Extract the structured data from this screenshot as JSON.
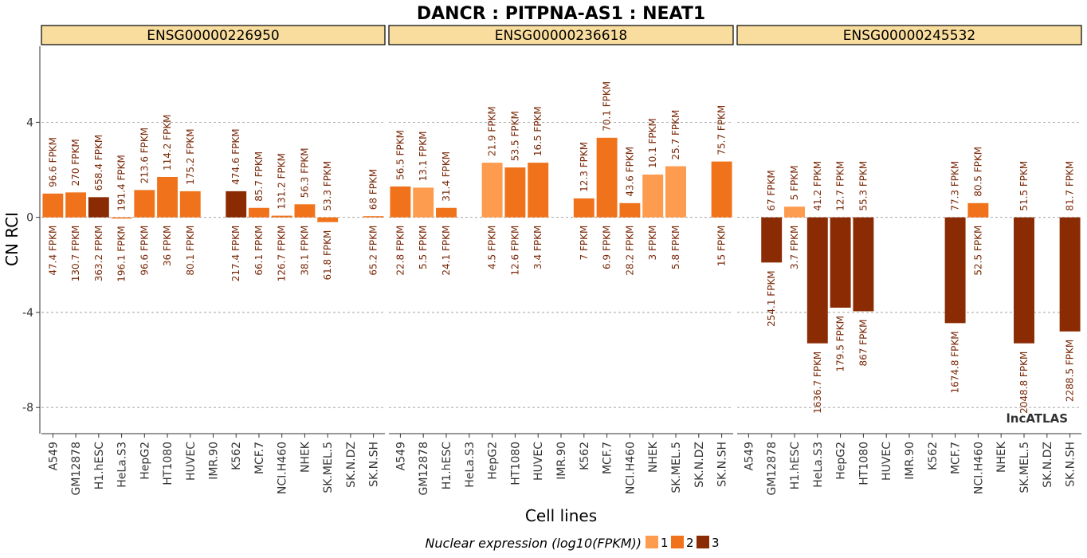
{
  "colors": {
    "level_1": "#fdae61",
    "level_1_fill": "#fd9b4e",
    "level_2": "#f0731c",
    "level_3_dark": "#c54102",
    "level_3": "#8a2b03",
    "strip_fill": "#f9dd9e",
    "grid": "#999999"
  },
  "chart_data": {
    "type": "bar",
    "title": "DANCR : PITPNA-AS1 : NEAT1",
    "xlabel": "Cell lines",
    "ylabel": "CN RCI",
    "ylim": [
      -9.1,
      7.2
    ],
    "yticks": [
      "4",
      "0",
      "-4",
      "-8"
    ],
    "ytick_values": [
      4,
      0,
      -4,
      -8
    ],
    "grid": "horizontal dashed at y ticks",
    "categories": [
      "A549",
      "GM12878",
      "H1.hESC",
      "HeLa.S3",
      "HepG2",
      "HT1080",
      "HUVEC",
      "IMR.90",
      "K562",
      "MCF.7",
      "NCI.H460",
      "NHEK",
      "SK.MEL.5",
      "SK.N.DZ",
      "SK.N.SH"
    ],
    "legend": {
      "title": "Nuclear expression (log10(FPKM))",
      "entries": [
        "1",
        "2",
        "3"
      ],
      "placement": "bottom"
    },
    "watermark": "lncATLAS",
    "panels": [
      {
        "name": "ENSG00000226950",
        "values": [
          1.0,
          1.05,
          0.85,
          -0.02,
          1.15,
          1.7,
          1.1,
          null,
          1.1,
          0.4,
          0.07,
          0.55,
          -0.2,
          null,
          0.05
        ],
        "levels": [
          2,
          2,
          3,
          2,
          2,
          2,
          2,
          null,
          3,
          2,
          2,
          2,
          2,
          null,
          2
        ],
        "nuclear_fpkm": [
          "96.6 FPKM",
          "270 FPKM",
          "658.4 FPKM",
          "191.4 FPKM",
          "213.6 FPKM",
          "114.2 FPKM",
          "175.2 FPKM",
          "",
          "474.6 FPKM",
          "85.7 FPKM",
          "131.2 FPKM",
          "56.3 FPKM",
          "53.3 FPKM",
          "",
          "68 FPKM"
        ],
        "cytoplasmic_fpkm": [
          "47.4 FPKM",
          "130.7 FPKM",
          "363.2 FPKM",
          "196.1 FPKM",
          "96.6 FPKM",
          "36 FPKM",
          "80.1 FPKM",
          "",
          "217.4 FPKM",
          "66.1 FPKM",
          "126.7 FPKM",
          "38.1 FPKM",
          "61.8 FPKM",
          "",
          "65.2 FPKM"
        ]
      },
      {
        "name": "ENSG00000236618",
        "values": [
          1.3,
          1.25,
          0.4,
          null,
          2.3,
          2.1,
          2.3,
          null,
          0.8,
          3.35,
          0.6,
          1.8,
          2.15,
          null,
          2.35
        ],
        "levels": [
          2,
          1,
          2,
          null,
          1,
          2,
          2,
          null,
          2,
          2,
          2,
          1,
          1,
          null,
          2
        ],
        "nuclear_fpkm": [
          "56.5 FPKM",
          "13.1 FPKM",
          "31.4 FPKM",
          "",
          "21.9 FPKM",
          "53.5 FPKM",
          "16.5 FPKM",
          "",
          "12.3 FPKM",
          "70.1 FPKM",
          "43.6 FPKM",
          "10.1 FPKM",
          "25.7 FPKM",
          "",
          "75.7 FPKM"
        ],
        "cytoplasmic_fpkm": [
          "22.8 FPKM",
          "5.5 FPKM",
          "24.1 FPKM",
          "",
          "4.5 FPKM",
          "12.6 FPKM",
          "3.4 FPKM",
          "",
          "7 FPKM",
          "6.9 FPKM",
          "28.2 FPKM",
          "3 FPKM",
          "5.8 FPKM",
          "",
          "15 FPKM"
        ]
      },
      {
        "name": "ENSG00000245532",
        "values": [
          null,
          -1.9,
          0.45,
          -5.3,
          -3.8,
          -3.95,
          null,
          null,
          null,
          -4.45,
          0.6,
          null,
          -5.3,
          null,
          -4.8
        ],
        "levels": [
          null,
          3,
          1,
          3,
          3,
          3,
          null,
          null,
          null,
          3,
          2,
          null,
          3,
          null,
          3
        ],
        "nuclear_fpkm": [
          "",
          "67 FPKM",
          "5 FPKM",
          "41.2 FPKM",
          "12.7 FPKM",
          "55.3 FPKM",
          "",
          "",
          "",
          "77.3 FPKM",
          "80.5 FPKM",
          "",
          "51.5 FPKM",
          "",
          "81.7 FPKM"
        ],
        "cytoplasmic_fpkm": [
          "",
          "254.1 FPKM",
          "3.7 FPKM",
          "1636.7 FPKM",
          "179.5 FPKM",
          "867 FPKM",
          "",
          "",
          "",
          "1674.8 FPKM",
          "52.5 FPKM",
          "",
          "2048.8 FPKM",
          "",
          "2288.5 FPKM"
        ]
      }
    ]
  }
}
